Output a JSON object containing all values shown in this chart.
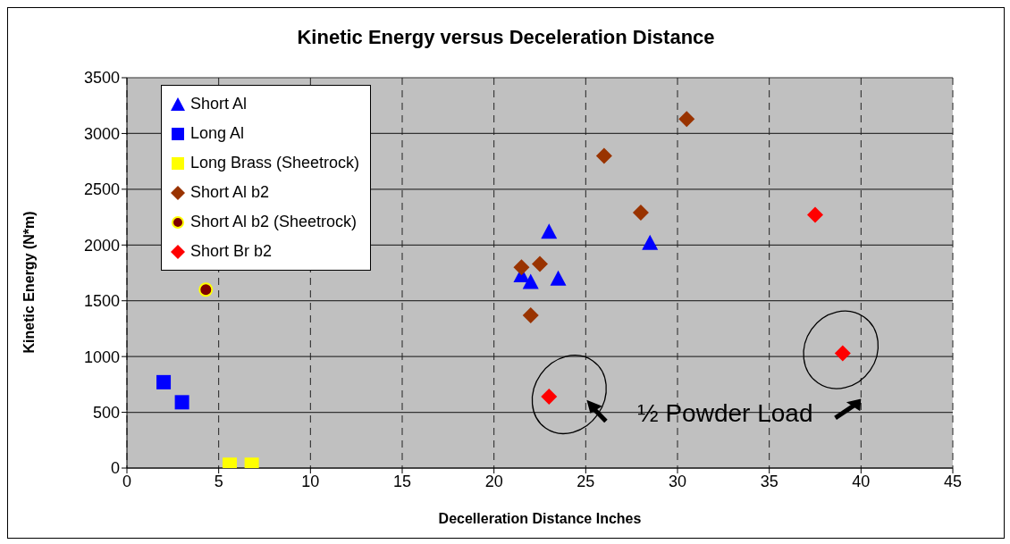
{
  "chart_data": {
    "type": "scatter",
    "title": "Kinetic Energy versus Deceleration Distance",
    "xlabel": "Decelleration Distance Inches",
    "ylabel": "Kinetic Energy (N*m)",
    "xlim": [
      0,
      45
    ],
    "xticks": [
      0,
      5,
      10,
      15,
      20,
      25,
      30,
      35,
      40,
      45
    ],
    "ylim": [
      0,
      3500
    ],
    "yticks": [
      0,
      500,
      1000,
      1500,
      2000,
      2500,
      3000,
      3500
    ],
    "grid": true,
    "legend": "top left",
    "annotations": [
      "½ Powder Load"
    ],
    "series": [
      {
        "name": "Short Al",
        "color": "#0000ff",
        "marker": "triangle",
        "x": [
          23,
          28.5,
          21.5,
          22,
          23.5
        ],
        "values": [
          2120,
          2020,
          1730,
          1670,
          1700
        ]
      },
      {
        "name": "Long Al",
        "color": "#0000ff",
        "marker": "square",
        "x": [
          2,
          3
        ],
        "values": [
          770,
          590
        ]
      },
      {
        "name": "Long Brass (Sheetrock)",
        "color": "#ffff00",
        "marker": "square",
        "x": [
          5.6,
          6.8
        ],
        "values": [
          30,
          30
        ]
      },
      {
        "name": "Short Al b2",
        "color": "#993300",
        "marker": "diamond",
        "x": [
          30.5,
          26,
          28,
          21.5,
          22.5,
          22
        ],
        "values": [
          3130,
          2800,
          2290,
          1800,
          1830,
          1370
        ]
      },
      {
        "name": "Short Al b2 (Sheetrock)",
        "color": "#800000",
        "marker": "circle",
        "x": [
          4.3
        ],
        "values": [
          1600
        ]
      },
      {
        "name": "Short Br b2",
        "color": "#ff0000",
        "marker": "diamond",
        "x": [
          23,
          37.5,
          39
        ],
        "values": [
          640,
          2270,
          1030
        ]
      }
    ]
  }
}
